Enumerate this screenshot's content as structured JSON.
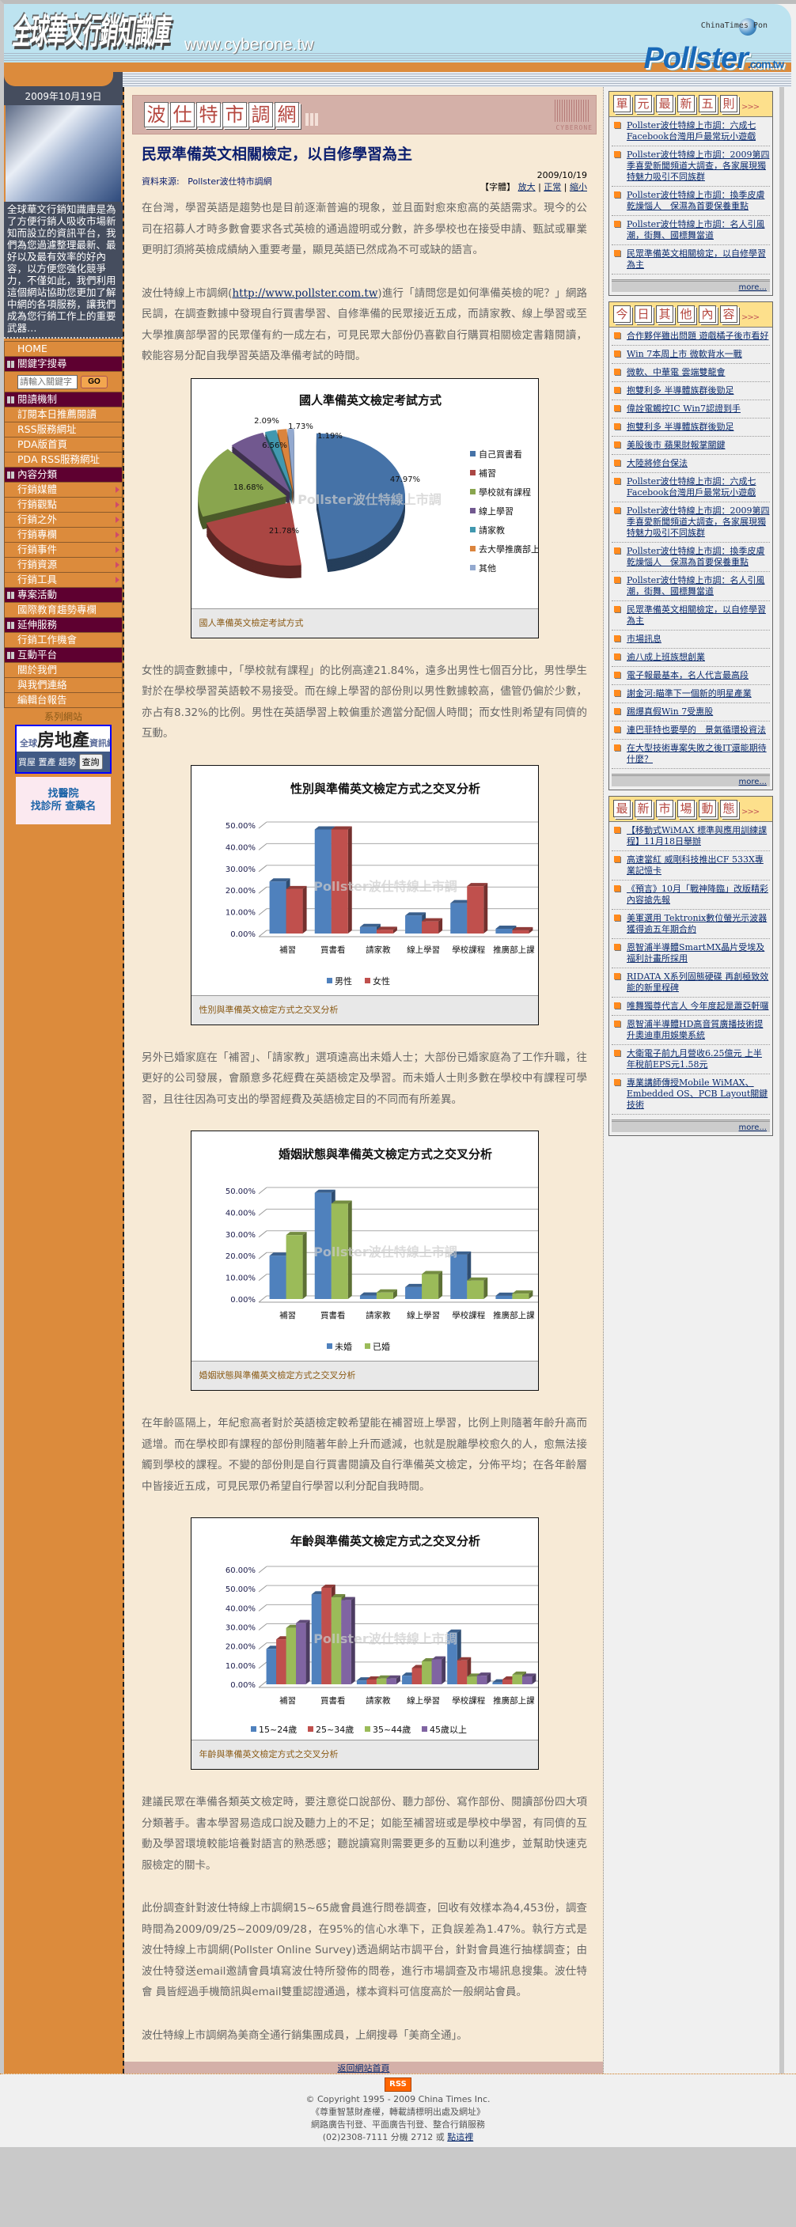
{
  "header": {
    "logo": "全球華文行銷知識庫",
    "url": "www.cyberone.tw",
    "partner": "ChinaTimes Pon",
    "pollster_logo": "Pollster",
    "pollster_suffix": ".com.tw"
  },
  "left": {
    "date": "2009年10月19日",
    "intro": "全球華文行銷知識庫是為了方便行銷人吸收市場新知而設立的資訊平台，我們為您過濾整理最新、最好以及最有效率的好內容，以方便您強化競爭力，不僅如此，我們利用這個網站協助您更加了解中網的各項服務，讓我們成為您行銷工作上的重要武器…",
    "home": "HOME",
    "search_header": "關鍵字搜尋",
    "search_placeholder": "請輸入關鍵字",
    "go": "GO",
    "reading_header": "閱讀機制",
    "reading": [
      "訂閱本日推薦閱讀",
      "RSS服務網址",
      "PDA版首頁",
      "PDA RSS服務網址"
    ],
    "category_header": "內容分類",
    "categories": [
      "行銷媒體",
      "行銷觀點",
      "行銷之外",
      "行銷專欄",
      "行銷事件",
      "行銷資源",
      "行銷工具"
    ],
    "project_header": "專案活動",
    "projects": [
      "國際教育趨勢專欄"
    ],
    "ext_header": "延伸服務",
    "ext": [
      "行銷工作機會"
    ],
    "inter_header": "互動平台",
    "inter": [
      "關於我們",
      "與我們連絡",
      "編輯台報告"
    ],
    "series": "系列網站",
    "banner1": {
      "title": "房地產",
      "sub": "資訊網",
      "prefix": "全球",
      "links": "買屋 置產 趨勢",
      "button": "查詢"
    },
    "banner2": {
      "line1": "找醫院",
      "line2": "找診所 查藥名"
    }
  },
  "main": {
    "section_tiles": [
      "波",
      "仕",
      "特",
      "市",
      "調",
      "網"
    ],
    "brand": "CYBERONE",
    "title": "民眾準備英文相關檢定，以自修學習為主",
    "source_label": "資料來源:",
    "source": "Pollster波仕特市調網",
    "date": "2009/10/19",
    "font_label": "【字體】",
    "font_larger": "放大",
    "font_normal": "正常",
    "font_smaller": "縮小",
    "p1": "在台灣，學習英語是趨勢也是目前逐漸普遍的現象，並且面對愈來愈高的英語需求。現今的公司在招募人才時多數會要求各式英檢的通過證明或分數，許多學校也在接受申請、甄試或畢業更明訂須將英檢成績納入重要考量，顯見英語已然成為不可或缺的語言。",
    "p2_a": "波仕特線上市調網(",
    "p2_link": "http://www.pollster.com.tw",
    "p2_b": ")進行「請問您是如何準備英檢的呢？」網路民調，在調查數據中發現自行買書學習、自修準備的民眾接近五成，而請家教、線上學習或至大學推廣部學習的民眾僅有約一成左右，可見民眾大部份仍喜歡自行購買相關檢定書籍閱讀，較能容易分配自我學習英語及準備考試的時間。",
    "p3": "女性的調查數據中，「學校就有課程」的比例高達21.84%，遠多出男性七個百分比，男性學生對於在學校學習英語較不易接受。而在線上學習的部份則以男性數據較高，儘管仍偏於少數，亦占有8.32%的比例。男性在英語學習上較偏重於適當分配個人時間；而女性則希望有同儕的互動。",
    "p4": "另外已婚家庭在「補習」、「請家教」選項遠高出未婚人士；大部份已婚家庭為了工作升職，往更好的公司發展，會願意多花經費在英語檢定及學習。而未婚人士則多數在學校中有課程可學習，且往往因為可支出的學習經費及英語檢定目的不同而有所差異。",
    "p5": "在年齡區隔上，年紀愈高者對於英語檢定較希望能在補習班上學習，比例上則隨著年齡升高而遞增。而在學校即有課程的部份則隨著年齡上升而遞減，也就是脫離學校愈久的人，愈無法接觸到學校的課程。不變的部份則是自行買書閱讀及自行準備英文檢定，分佈平均；在各年齡層中皆接近五成，可見民眾仍希望自行學習以利分配自我時間。",
    "p6": "建議民眾在準備各類英文檢定時，要注意從口說部份、聽力部份、寫作部份、閱讀部份四大項分類著手。書本學習易造成口說及聽力上的不足；如能至補習班或是學校中學習，有同儕的互動及學習環境較能培養對語言的熟悉感；聽說讀寫則需要更多的互動以利進步，並幫助快速克服檢定的關卡。",
    "p7": "此份調查針對波仕特線上市調網15~65歲會員進行問卷調查，回收有效樣本為4,453份，調查時間為2009/09/25~2009/09/28，在95%的信心水準下，正負誤差為1.47%。執行方式是波仕特線上市調網(Pollster Online Survey)透過網站市調平台，針對會員進行抽樣調查；由波仕特發送email邀請會員填寫波仕特所發佈的問卷，進行市場調查及市場訊息搜集。波仕特會 員皆經過手機簡訊與email雙重認證通過，樣本資料可信度高於一般網站會員。",
    "p8": "波仕特線上市調網為美商全通行銷集團成員，上網搜尋「美商全通」。",
    "watermark": "Pollster波仕特線上市調",
    "back_home": "返回網站首頁"
  },
  "chart_data": [
    {
      "type": "pie",
      "title": "國人準備英文檢定考試方式",
      "caption": "國人準備英文檢定考試方式",
      "legend": "right",
      "categories": [
        "自己買書看",
        "補習",
        "學校就有課程",
        "線上學習",
        "請家教",
        "去大學推廣部上課",
        "其他"
      ],
      "values": [
        47.97,
        21.78,
        18.68,
        6.56,
        2.09,
        1.73,
        1.19
      ],
      "labels": [
        "47.97%",
        "21.78%",
        "18.68%",
        "6.56%",
        "2.09%",
        "1.73%",
        "1.19%"
      ],
      "colors": [
        "#4572a7",
        "#aa4643",
        "#89a54e",
        "#71588f",
        "#4198af",
        "#db843d",
        "#93a9cf"
      ]
    },
    {
      "type": "bar",
      "title": "性別與準備英文檢定方式之交叉分析",
      "caption": "性別與準備英文檢定方式之交叉分析",
      "legend": "bottom",
      "grid": true,
      "categories": [
        "補習",
        "買書看",
        "請家教",
        "線上學習",
        "學校課程",
        "推廣部上課"
      ],
      "ylim": [
        0,
        50
      ],
      "yticks": [
        "0.00%",
        "10.00%",
        "20.00%",
        "30.00%",
        "40.00%",
        "50.00%"
      ],
      "series": [
        {
          "name": "男性",
          "color": "#4f81bd",
          "values": [
            24,
            48,
            3,
            8.32,
            14,
            2.2
          ]
        },
        {
          "name": "女性",
          "color": "#c0504d",
          "values": [
            20.5,
            48,
            1.7,
            5.6,
            21.84,
            1.5
          ]
        }
      ]
    },
    {
      "type": "bar",
      "title": "婚姻狀態與準備英文檢定方式之交叉分析",
      "caption": "婚姻狀態與準備英文檢定方式之交叉分析",
      "legend": "bottom",
      "grid": true,
      "categories": [
        "補習",
        "買書看",
        "請家教",
        "線上學習",
        "學校課程",
        "推廣部上課"
      ],
      "ylim": [
        0,
        50
      ],
      "yticks": [
        "0.00%",
        "10.00%",
        "20.00%",
        "30.00%",
        "40.00%",
        "50.00%"
      ],
      "series": [
        {
          "name": "未婚",
          "color": "#4f81bd",
          "values": [
            20,
            49,
            1.6,
            5.5,
            20.5,
            1.5
          ]
        },
        {
          "name": "已婚",
          "color": "#9bbb59",
          "values": [
            29.5,
            44,
            3,
            11.5,
            8.5,
            2.5
          ]
        }
      ]
    },
    {
      "type": "bar",
      "title": "年齡與準備英文檢定方式之交叉分析",
      "caption": "年齡與準備英文檢定方式之交叉分析",
      "legend": "bottom",
      "grid": true,
      "categories": [
        "補習",
        "買書看",
        "請家教",
        "線上學習",
        "學校課程",
        "推廣部上課"
      ],
      "ylim": [
        0,
        60
      ],
      "yticks": [
        "0.00%",
        "10.00%",
        "20.00%",
        "30.00%",
        "40.00%",
        "50.00%",
        "60.00%"
      ],
      "series": [
        {
          "name": "15~24歲",
          "color": "#4f81bd",
          "values": [
            18.5,
            47,
            2,
            4.5,
            27,
            1
          ]
        },
        {
          "name": "25~34歲",
          "color": "#c0504d",
          "values": [
            23.5,
            50.5,
            2.5,
            8.5,
            12.5,
            2.5
          ]
        },
        {
          "name": "35~44歲",
          "color": "#9bbb59",
          "values": [
            29.5,
            45.5,
            3,
            12,
            4,
            5
          ]
        },
        {
          "name": "45歲以上",
          "color": "#8064a2",
          "values": [
            32,
            44,
            3,
            13,
            4.5,
            4
          ]
        }
      ]
    }
  ],
  "right": {
    "boxes": [
      {
        "tiles": [
          "單",
          "元",
          "最",
          "新",
          "五",
          "則"
        ],
        "arrows": ">>>",
        "more": "more...",
        "items": [
          "Pollster波仕特線上市調：六成七Facebook台灣用戶最常玩小遊戲",
          "Pollster波仕特線上市調：2009第四季喜愛新聞頻道大調查，各家展現獨特魅力吸引不同族群",
          "Pollster波仕特線上市調：換季皮膚乾燥惱人　保濕為首要保養重點",
          "Pollster波仕特線上市調：名人引風潮，街舞、國標舞當道",
          "民眾準備英文相關檢定，以自修學習為主"
        ]
      },
      {
        "tiles": [
          "今",
          "日",
          "其",
          "他",
          "內",
          "容"
        ],
        "arrows": ">>>",
        "more": "more...",
        "items": [
          "合作夥伴雖出問題 遊戲橘子後市看好",
          "Win 7本周上市 微軟背水一戰",
          "微軟、中華電 雲端雙龍會",
          "抱雙利多 半導體族群後勁足",
          "偉詮電觸控IC Win7認證到手",
          "抱雙利多 半導體族群後勁足",
          "美股後市 蘋果財報掌關鍵",
          "大陸將修台保法",
          "Pollster波仕特線上市調：六成七Facebook台灣用戶最常玩小遊戲",
          "Pollster波仕特線上市調：2009第四季喜愛新聞頻道大調查，各家展現獨特魅力吸引不同族群",
          "Pollster波仕特線上市調：換季皮膚乾燥惱人　保濕為首要保養重點",
          "Pollster波仕特線上市調：名人引風潮，街舞、國標舞當道",
          "民眾準備英文相關檢定，以自修學習為主",
          "市場訊息",
          "逾八成上班族想創業",
          "電子報最基本，名人代言最高段",
          "謝金河:瞄準下一個新的明星產業",
          "踢爆真假Win 7受惠股",
          "連巴菲特也要學的　景氣循環投資法",
          "在大型技術專案失敗之後IT還能期待什麼？"
        ]
      },
      {
        "tiles": [
          "最",
          "新",
          "市",
          "場",
          "動",
          "態"
        ],
        "arrows": ">>>",
        "more": "more...",
        "items": [
          "【移動式WiMAX 標準與應用訓練課程】11月18日舉辦",
          "高速當紅 威剛科技推出CF 533X專業記憶卡",
          "《預言》10月「戰神降臨」改版精彩內容搶先報",
          "美軍選用 Tektronix數位螢光示波器 獲得逾五年期合約",
          "恩智浦半導體SmartMX晶片受埃及福利計畫所採用",
          "RIDATA X系列固態硬碟 再創極致效能的新里程碑",
          "唯舞獨尊代言人 今年度起是蕭亞軒囉",
          "恩智浦半導體HD高音質廣播技術提升奧迪車用娛樂系統",
          "大衛電子前九月營收6.25億元 上半年稅前EPS元1.58元",
          "專業講師傳授Mobile WiMAX、Embedded OS、PCB Layout關鍵技術"
        ]
      }
    ]
  },
  "footer": {
    "rss": "RSS",
    "copyright": "© Copyright 1995 - 2009 China Times Inc.",
    "notice": "《尊重智慧財產權，轉載請標明出處及網址》",
    "services": "網路廣告刊登、平面廣告刊登、整合行銷服務",
    "phone": "(02)2308-7111 分機 2712 或 ",
    "click": "點這裡"
  }
}
